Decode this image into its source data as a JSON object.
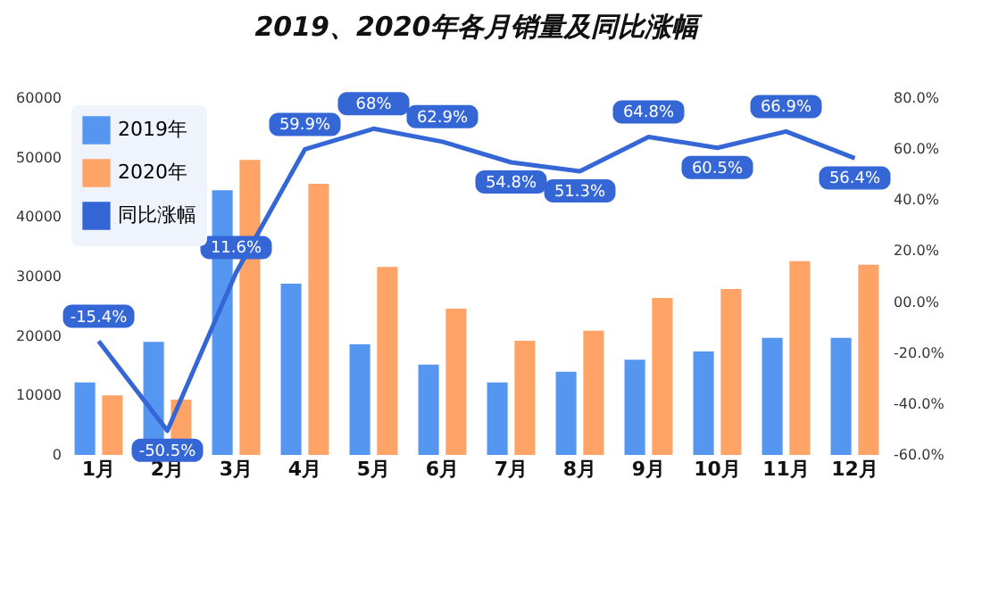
{
  "chart_data": {
    "type": "bar",
    "title": "2019、2020年各月销量及同比涨幅",
    "categories": [
      "1月",
      "2月",
      "3月",
      "4月",
      "5月",
      "6月",
      "7月",
      "8月",
      "9月",
      "10月",
      "11月",
      "12月"
    ],
    "series": [
      {
        "name": "2019年",
        "color": "#5596f0",
        "values": [
          12200,
          19000,
          44500,
          28800,
          18600,
          15200,
          12200,
          14000,
          16000,
          17400,
          19700,
          19700
        ]
      },
      {
        "name": "2020年",
        "color": "#ffa366",
        "values": [
          10000,
          9300,
          49600,
          45600,
          31600,
          24600,
          19200,
          20900,
          26400,
          27900,
          32600,
          32000
        ]
      },
      {
        "name": "同比涨幅",
        "type": "line",
        "axis": "y2",
        "color": "#3566d6",
        "values": [
          -15.4,
          -50.5,
          11.6,
          59.9,
          68,
          62.9,
          54.8,
          51.3,
          64.8,
          60.5,
          66.9,
          56.4
        ],
        "value_labels": [
          "-15.4%",
          "-50.5%",
          "11.6%",
          "59.9%",
          "68%",
          "62.9%",
          "54.8%",
          "51.3%",
          "64.8%",
          "60.5%",
          "66.9%",
          "56.4%"
        ]
      }
    ],
    "ylim": [
      0,
      60000
    ],
    "yticks": [
      0,
      10000,
      20000,
      30000,
      40000,
      50000,
      60000
    ],
    "y2lim": [
      -60,
      80
    ],
    "y2ticks": [
      {
        "value": -60,
        "label": "-60.0%"
      },
      {
        "value": -40,
        "label": "-40.0%"
      },
      {
        "value": -20,
        "label": "-20.0%"
      },
      {
        "value": 0,
        "label": "00.0%"
      },
      {
        "value": 20,
        "label": "20.0%"
      },
      {
        "value": 40,
        "label": "40.0%"
      },
      {
        "value": 60,
        "label": "60.0%"
      },
      {
        "value": 80,
        "label": "80.0%"
      }
    ],
    "legend": "top left"
  }
}
